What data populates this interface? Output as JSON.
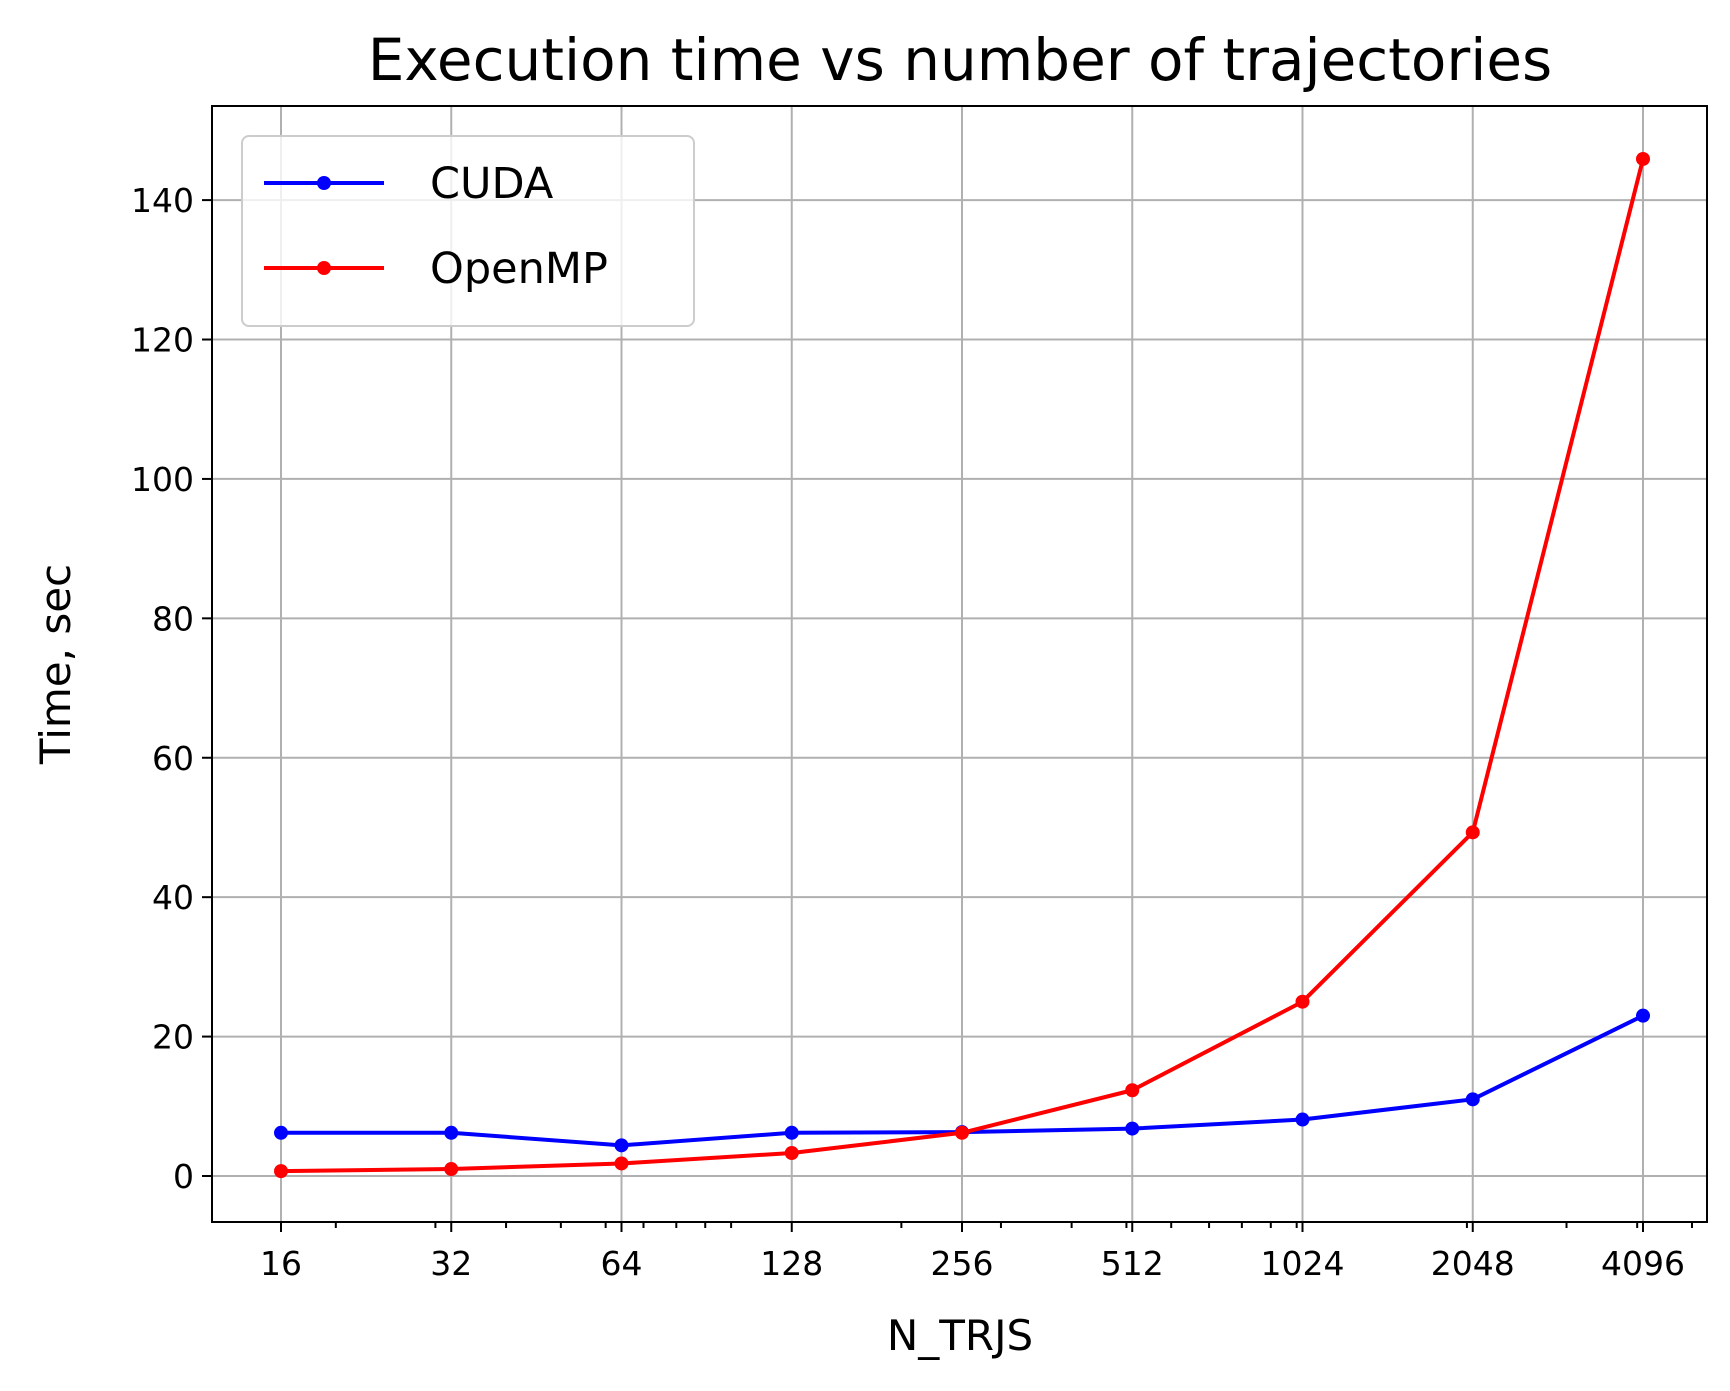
{
  "chart_data": {
    "type": "line",
    "title": "Execution time vs number of trajectories",
    "xlabel": "N_TRJS",
    "ylabel": "Time, sec",
    "xscale": "log2",
    "x": [
      16,
      32,
      64,
      128,
      256,
      512,
      1024,
      2048,
      4096
    ],
    "x_tick_labels": [
      "16",
      "32",
      "64",
      "128",
      "256",
      "512",
      "1024",
      "2048",
      "4096"
    ],
    "y_ticks": [
      0,
      20,
      40,
      60,
      80,
      100,
      120,
      140
    ],
    "y_tick_labels": [
      "0",
      "20",
      "40",
      "60",
      "80",
      "100",
      "120",
      "140"
    ],
    "ylim": [
      -6.6,
      153.5
    ],
    "grid": true,
    "legend_position": "top-left",
    "series": [
      {
        "name": "CUDA",
        "color": "#0000ff",
        "values": [
          6.2,
          6.2,
          4.4,
          6.2,
          6.3,
          6.8,
          8.1,
          11.0,
          23.0
        ]
      },
      {
        "name": "OpenMP",
        "color": "#ff0000",
        "values": [
          0.7,
          1.0,
          1.8,
          3.3,
          6.2,
          12.3,
          25.0,
          49.3,
          145.9
        ]
      }
    ]
  }
}
